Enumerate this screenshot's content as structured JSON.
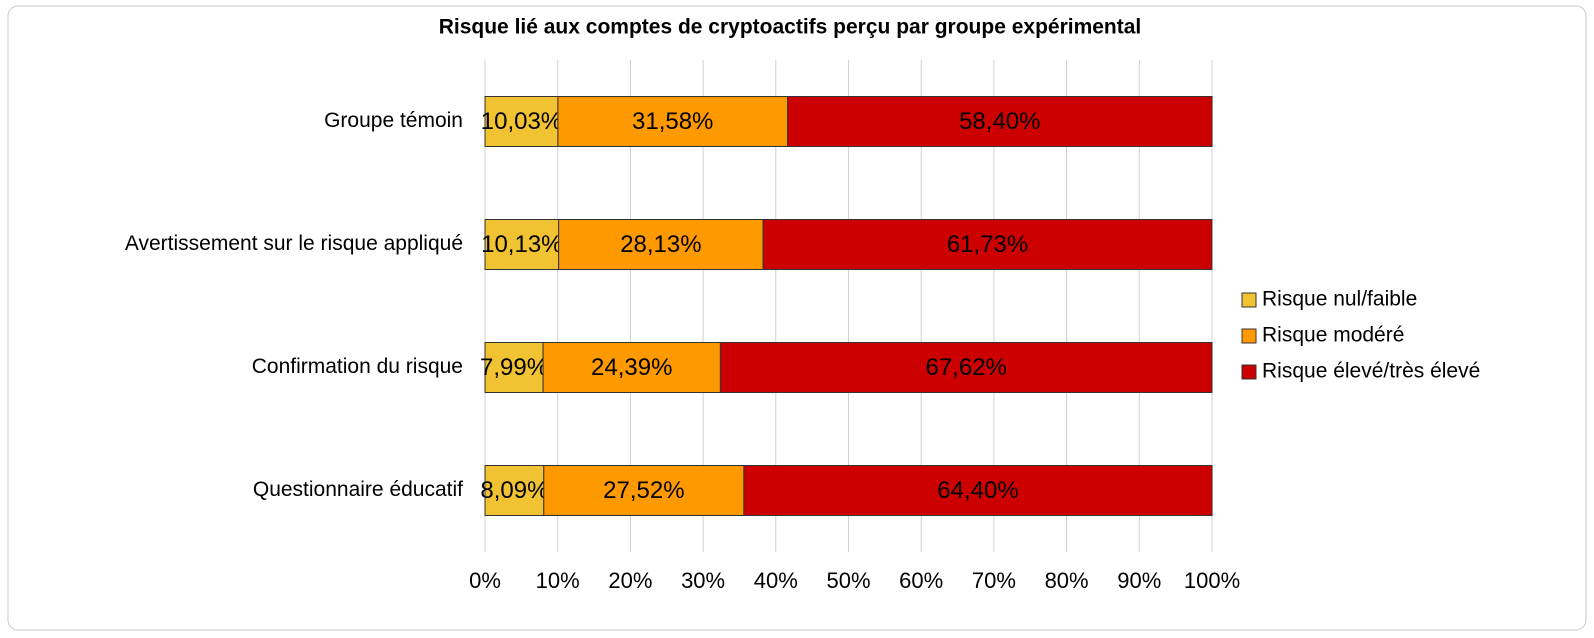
{
  "chart_data": {
    "type": "stacked-bar-horizontal",
    "title": "Risque lié aux comptes de cryptoactifs perçu par groupe expérimental",
    "categories": [
      "Groupe témoin",
      "Avertissement sur le risque appliqué",
      "Confirmation du risque",
      "Questionnaire éducatif"
    ],
    "series": [
      {
        "name": "Risque nul/faible",
        "color": "#f1c232",
        "values": [
          10.03,
          10.13,
          7.99,
          8.09
        ],
        "value_labels": [
          "10,03%",
          "10,13%",
          "7,99%",
          "8,09%"
        ]
      },
      {
        "name": "Risque modéré",
        "color": "#ff9900",
        "values": [
          31.58,
          28.13,
          24.39,
          27.52
        ],
        "value_labels": [
          "31,58%",
          "28,13%",
          "24,39%",
          "27,52%"
        ]
      },
      {
        "name": "Risque élevé/très élevé",
        "color": "#cc0000",
        "values": [
          58.4,
          61.73,
          67.62,
          64.4
        ],
        "value_labels": [
          "58,40%",
          "61,73%",
          "67,62%",
          "64,40%"
        ]
      }
    ],
    "xlim": [
      0,
      100
    ],
    "xticks": [
      {
        "value": 0,
        "label": "0%"
      },
      {
        "value": 10,
        "label": "10%"
      },
      {
        "value": 20,
        "label": "20%"
      },
      {
        "value": 30,
        "label": "30%"
      },
      {
        "value": 40,
        "label": "40%"
      },
      {
        "value": 50,
        "label": "50%"
      },
      {
        "value": 60,
        "label": "60%"
      },
      {
        "value": 70,
        "label": "70%"
      },
      {
        "value": 80,
        "label": "80%"
      },
      {
        "value": 90,
        "label": "90%"
      },
      {
        "value": 100,
        "label": "100%"
      }
    ],
    "grid": true,
    "legend": "right"
  }
}
